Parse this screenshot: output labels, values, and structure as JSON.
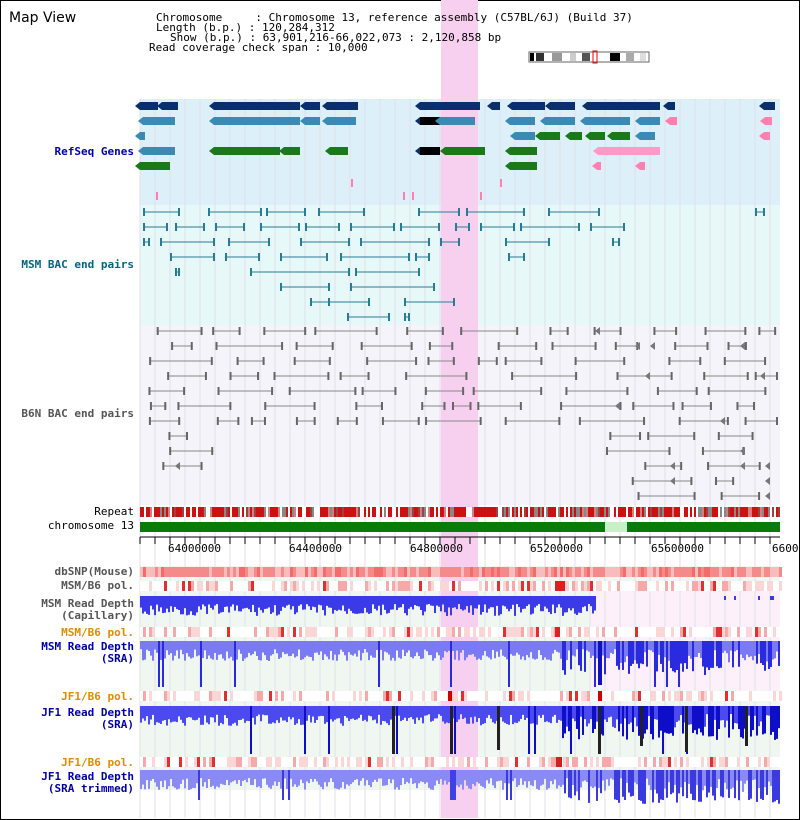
{
  "view": {
    "title": "Map View",
    "chromosome_label": "Chromosome",
    "chromosome_value": "Chromosome 13, reference assembly (C57BL/6J) (Build 37)",
    "length_label": "Length (b.p.)",
    "length_value": "120,284,312",
    "show_label": "Show (b.p.)",
    "show_value": "63,901,216-66,022,073 : 2,120,858 bp",
    "coverage_label": "Read coverage check span",
    "coverage_value": "10,000"
  },
  "tracks": {
    "refseq": "RefSeq Genes",
    "msm_bac": "MSM BAC end pairs",
    "b6n_bac": "B6N BAC end pairs",
    "repeat": "Repeat",
    "chromosome": "chromosome 13",
    "dbsnp": "dbSNP(Mouse)",
    "msm_b6_pol_1": "MSM/B6 pol.",
    "msm_read_cap_1": "MSM Read Depth",
    "msm_read_cap_2": "(Capillary)",
    "msm_b6_pol_2": "MSM/B6 pol.",
    "msm_read_sra_1": "MSM Read Depth",
    "msm_read_sra_2": "(SRA)",
    "jf1_b6_pol_1": "JF1/B6 pol.",
    "jf1_read_sra_1": "JF1 Read Depth",
    "jf1_read_sra_2": "(SRA)",
    "jf1_b6_pol_2": "JF1/B6 pol.",
    "jf1_read_trim_1": "JF1 Read Depth",
    "jf1_read_trim_2": "(SRA trimmed)"
  },
  "axis": {
    "ticks": [
      "64000000",
      "64400000",
      "64800000",
      "65200000",
      "65600000",
      "6600"
    ]
  },
  "colors": {
    "refseq_label": "#0000aa",
    "msm_bac_label": "#006680",
    "b6n_label": "#555555",
    "pol_orange": "#e08c00",
    "read_label_blue": "#0000aa",
    "highlight": "#f7d0f0"
  }
}
